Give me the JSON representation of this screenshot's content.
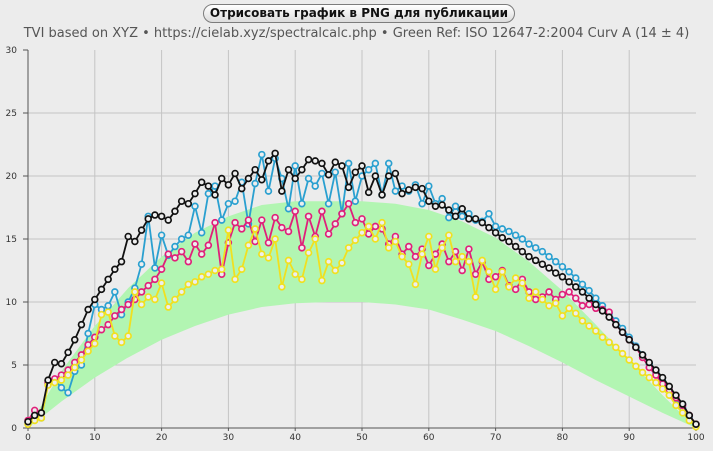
{
  "header": {
    "export_button_label": "Отрисовать график в PNG для публикации",
    "subtitle": "TVI based on XYZ  •  https://cielab.xyz/spectralcalc.php  •  Green Ref: ISO 12647-2:2004 Curv A (14 ± 4)"
  },
  "chart_data": {
    "type": "line",
    "title": "",
    "xlabel": "",
    "ylabel": "",
    "xlim": [
      0,
      100
    ],
    "ylim": [
      0,
      30
    ],
    "x_ticks": [
      0,
      10,
      20,
      30,
      40,
      50,
      60,
      70,
      80,
      90,
      100
    ],
    "y_ticks": [
      0,
      5,
      10,
      15,
      20,
      25,
      30
    ],
    "grid": true,
    "colors": {
      "cyan": "#2aa0d0",
      "magenta": "#e0207a",
      "yellow": "#f0e020",
      "black": "#111111",
      "reference_band": "#b2f5b2",
      "background": "#ececec",
      "grid": "#c4c4c4"
    },
    "reference_band": {
      "x": [
        0,
        5,
        10,
        15,
        20,
        25,
        30,
        35,
        40,
        45,
        50,
        55,
        60,
        65,
        70,
        75,
        80,
        85,
        90,
        95,
        100
      ],
      "lower": [
        0,
        2.1,
        4.0,
        5.6,
        7.0,
        8.1,
        9.0,
        9.6,
        9.9,
        10.0,
        10.0,
        9.8,
        9.4,
        8.6,
        7.7,
        6.5,
        5.2,
        3.8,
        2.5,
        1.2,
        0
      ],
      "upper": [
        0,
        4.5,
        8.1,
        11.1,
        13.6,
        15.5,
        16.8,
        17.7,
        18.0,
        18.0,
        18.0,
        17.8,
        17.3,
        16.4,
        15.1,
        13.2,
        10.9,
        8.2,
        5.4,
        2.6,
        0
      ]
    },
    "series": [
      {
        "color": "cyan",
        "x": [
          0,
          1,
          2,
          3,
          4,
          5,
          6,
          7,
          8,
          9,
          10,
          11,
          12,
          13,
          14,
          15,
          16,
          17,
          18,
          19,
          20,
          21,
          22,
          23,
          24,
          25,
          26,
          27,
          28,
          29,
          30,
          31,
          32,
          33,
          34,
          35,
          36,
          37,
          38,
          39,
          40,
          41,
          42,
          43,
          44,
          45,
          46,
          47,
          48,
          49,
          50,
          51,
          52,
          53,
          54,
          55,
          56,
          57,
          58,
          59,
          60,
          61,
          62,
          63,
          64,
          65,
          66,
          67,
          68,
          69,
          70,
          71,
          72,
          73,
          74,
          75,
          76,
          77,
          78,
          79,
          80,
          81,
          82,
          83,
          84,
          85,
          86,
          87,
          88,
          89,
          90,
          91,
          92,
          93,
          94,
          95,
          96,
          97,
          98,
          99,
          100
        ],
        "y": [
          0.5,
          1.0,
          0.8,
          3.5,
          3.8,
          3.2,
          2.8,
          4.5,
          5.0,
          7.5,
          9.8,
          9.4,
          9.7,
          10.8,
          9.0,
          10.0,
          11.1,
          13.0,
          16.8,
          12.7,
          15.3,
          13.7,
          14.4,
          15.0,
          15.3,
          17.6,
          15.5,
          18.6,
          19.2,
          16.5,
          17.8,
          18.0,
          19.5,
          16.2,
          19.4,
          21.7,
          18.8,
          21.4,
          19.8,
          17.4,
          20.8,
          17.8,
          19.8,
          19.2,
          20.2,
          17.8,
          20.3,
          17.0,
          21.0,
          18.0,
          20.0,
          20.5,
          21.0,
          18.5,
          21.0,
          18.8,
          19.2,
          18.8,
          19.3,
          17.8,
          19.2,
          17.8,
          18.2,
          16.7,
          17.6,
          16.8,
          17.0,
          16.5,
          16.4,
          17.0,
          16.0,
          15.8,
          15.6,
          15.3,
          15.0,
          14.6,
          14.3,
          14.0,
          13.6,
          13.2,
          12.8,
          12.4,
          11.9,
          11.4,
          10.9,
          10.3,
          9.7,
          9.1,
          8.5,
          7.9,
          7.2,
          6.5,
          5.8,
          5.1,
          4.4,
          3.7,
          3.0,
          2.3,
          1.6,
          0.9,
          0.2
        ]
      },
      {
        "color": "magenta",
        "x": [
          0,
          1,
          2,
          3,
          4,
          5,
          6,
          7,
          8,
          9,
          10,
          11,
          12,
          13,
          14,
          15,
          16,
          17,
          18,
          19,
          20,
          21,
          22,
          23,
          24,
          25,
          26,
          27,
          28,
          29,
          30,
          31,
          32,
          33,
          34,
          35,
          36,
          37,
          38,
          39,
          40,
          41,
          42,
          43,
          44,
          45,
          46,
          47,
          48,
          49,
          50,
          51,
          52,
          53,
          54,
          55,
          56,
          57,
          58,
          59,
          60,
          61,
          62,
          63,
          64,
          65,
          66,
          67,
          68,
          69,
          70,
          71,
          72,
          73,
          74,
          75,
          76,
          77,
          78,
          79,
          80,
          81,
          82,
          83,
          84,
          85,
          86,
          87,
          88,
          89,
          90,
          91,
          92,
          93,
          94,
          95,
          96,
          97,
          98,
          99,
          100
        ],
        "y": [
          0.6,
          1.4,
          1.2,
          3.6,
          3.9,
          4.2,
          4.6,
          5.2,
          5.8,
          6.6,
          7.2,
          7.8,
          8.2,
          8.9,
          9.4,
          9.8,
          10.2,
          10.8,
          11.3,
          11.8,
          12.6,
          13.8,
          13.5,
          14.0,
          13.2,
          14.6,
          13.8,
          14.5,
          16.3,
          12.2,
          14.7,
          16.3,
          15.8,
          16.5,
          14.8,
          16.5,
          14.7,
          16.7,
          15.9,
          15.6,
          17.2,
          14.3,
          16.8,
          15.2,
          17.2,
          15.4,
          16.2,
          17.0,
          17.8,
          16.3,
          16.6,
          15.4,
          16.0,
          15.8,
          14.6,
          15.2,
          13.8,
          14.4,
          13.6,
          14.2,
          12.9,
          13.8,
          14.6,
          13.2,
          14.0,
          12.5,
          14.2,
          12.2,
          13.2,
          11.8,
          12.0,
          12.5,
          11.3,
          11.0,
          11.8,
          10.8,
          10.2,
          10.4,
          10.8,
          10.2,
          10.6,
          10.8,
          10.3,
          9.7,
          9.8,
          9.5,
          9.4,
          9.2,
          8.2,
          7.6,
          7.0,
          6.4,
          5.6,
          4.8,
          4.2,
          3.5,
          3.0,
          2.4,
          1.8,
          1.0,
          0.3
        ]
      },
      {
        "color": "yellow",
        "x": [
          0,
          1,
          2,
          3,
          4,
          5,
          6,
          7,
          8,
          9,
          10,
          11,
          12,
          13,
          14,
          15,
          16,
          17,
          18,
          19,
          20,
          21,
          22,
          23,
          24,
          25,
          26,
          27,
          28,
          29,
          30,
          31,
          32,
          33,
          34,
          35,
          36,
          37,
          38,
          39,
          40,
          41,
          42,
          43,
          44,
          45,
          46,
          47,
          48,
          49,
          50,
          51,
          52,
          53,
          54,
          55,
          56,
          57,
          58,
          59,
          60,
          61,
          62,
          63,
          64,
          65,
          66,
          67,
          68,
          69,
          70,
          71,
          72,
          73,
          74,
          75,
          76,
          77,
          78,
          79,
          80,
          81,
          82,
          83,
          84,
          85,
          86,
          87,
          88,
          89,
          90,
          91,
          92,
          93,
          94,
          95,
          96,
          97,
          98,
          99,
          100
        ],
        "y": [
          0.3,
          0.6,
          0.8,
          3.4,
          3.6,
          3.8,
          4.2,
          4.8,
          5.4,
          6.1,
          6.7,
          9.0,
          9.2,
          7.3,
          6.8,
          7.3,
          10.8,
          9.8,
          10.4,
          10.2,
          11.5,
          9.6,
          10.2,
          10.8,
          11.4,
          11.6,
          12.0,
          12.2,
          12.5,
          12.6,
          15.7,
          11.8,
          12.6,
          14.5,
          15.8,
          13.8,
          13.5,
          15.0,
          11.2,
          13.3,
          12.2,
          11.8,
          13.9,
          15.0,
          11.7,
          13.2,
          12.5,
          13.1,
          14.3,
          14.9,
          15.5,
          16.0,
          15.0,
          16.3,
          14.3,
          14.8,
          13.6,
          13.0,
          11.4,
          13.8,
          15.2,
          12.6,
          14.3,
          15.3,
          13.2,
          13.6,
          13.2,
          10.4,
          13.3,
          12.4,
          11.0,
          12.4,
          11.2,
          11.9,
          11.5,
          10.3,
          10.8,
          10.2,
          9.7,
          9.9,
          8.9,
          9.5,
          9.1,
          8.5,
          8.1,
          7.7,
          7.2,
          6.8,
          6.4,
          5.9,
          5.4,
          4.9,
          4.4,
          4.0,
          3.6,
          3.1,
          2.6,
          1.8,
          1.2,
          0.6,
          0.1
        ]
      },
      {
        "color": "black",
        "x": [
          0,
          1,
          2,
          3,
          4,
          5,
          6,
          7,
          8,
          9,
          10,
          11,
          12,
          13,
          14,
          15,
          16,
          17,
          18,
          19,
          20,
          21,
          22,
          23,
          24,
          25,
          26,
          27,
          28,
          29,
          30,
          31,
          32,
          33,
          34,
          35,
          36,
          37,
          38,
          39,
          40,
          41,
          42,
          43,
          44,
          45,
          46,
          47,
          48,
          49,
          50,
          51,
          52,
          53,
          54,
          55,
          56,
          57,
          58,
          59,
          60,
          61,
          62,
          63,
          64,
          65,
          66,
          67,
          68,
          69,
          70,
          71,
          72,
          73,
          74,
          75,
          76,
          77,
          78,
          79,
          80,
          81,
          82,
          83,
          84,
          85,
          86,
          87,
          88,
          89,
          90,
          91,
          92,
          93,
          94,
          95,
          96,
          97,
          98,
          99,
          100
        ],
        "y": [
          0.5,
          1.0,
          1.2,
          3.8,
          5.2,
          5.1,
          6.0,
          7.0,
          8.2,
          9.4,
          10.2,
          11.0,
          11.8,
          12.6,
          13.2,
          15.2,
          14.8,
          15.7,
          16.6,
          16.9,
          16.8,
          16.5,
          17.2,
          18.0,
          17.8,
          18.6,
          19.5,
          19.2,
          18.5,
          19.8,
          19.3,
          20.2,
          19.0,
          19.8,
          20.5,
          19.7,
          21.2,
          21.8,
          18.8,
          20.5,
          19.8,
          20.5,
          21.3,
          21.2,
          21.0,
          20.1,
          21.1,
          20.8,
          19.1,
          20.3,
          20.8,
          18.7,
          20.0,
          18.5,
          20.0,
          20.2,
          18.6,
          18.9,
          19.1,
          19.0,
          18.0,
          17.6,
          17.7,
          17.3,
          16.8,
          17.4,
          16.6,
          16.6,
          16.3,
          15.9,
          15.5,
          15.1,
          14.8,
          14.4,
          14.0,
          13.6,
          13.3,
          13.0,
          12.7,
          12.3,
          12.0,
          11.6,
          11.2,
          10.8,
          10.3,
          9.8,
          9.3,
          8.8,
          8.2,
          7.6,
          7.0,
          6.4,
          5.8,
          5.2,
          4.6,
          4.0,
          3.3,
          2.6,
          1.9,
          1.0,
          0.3
        ]
      }
    ]
  }
}
